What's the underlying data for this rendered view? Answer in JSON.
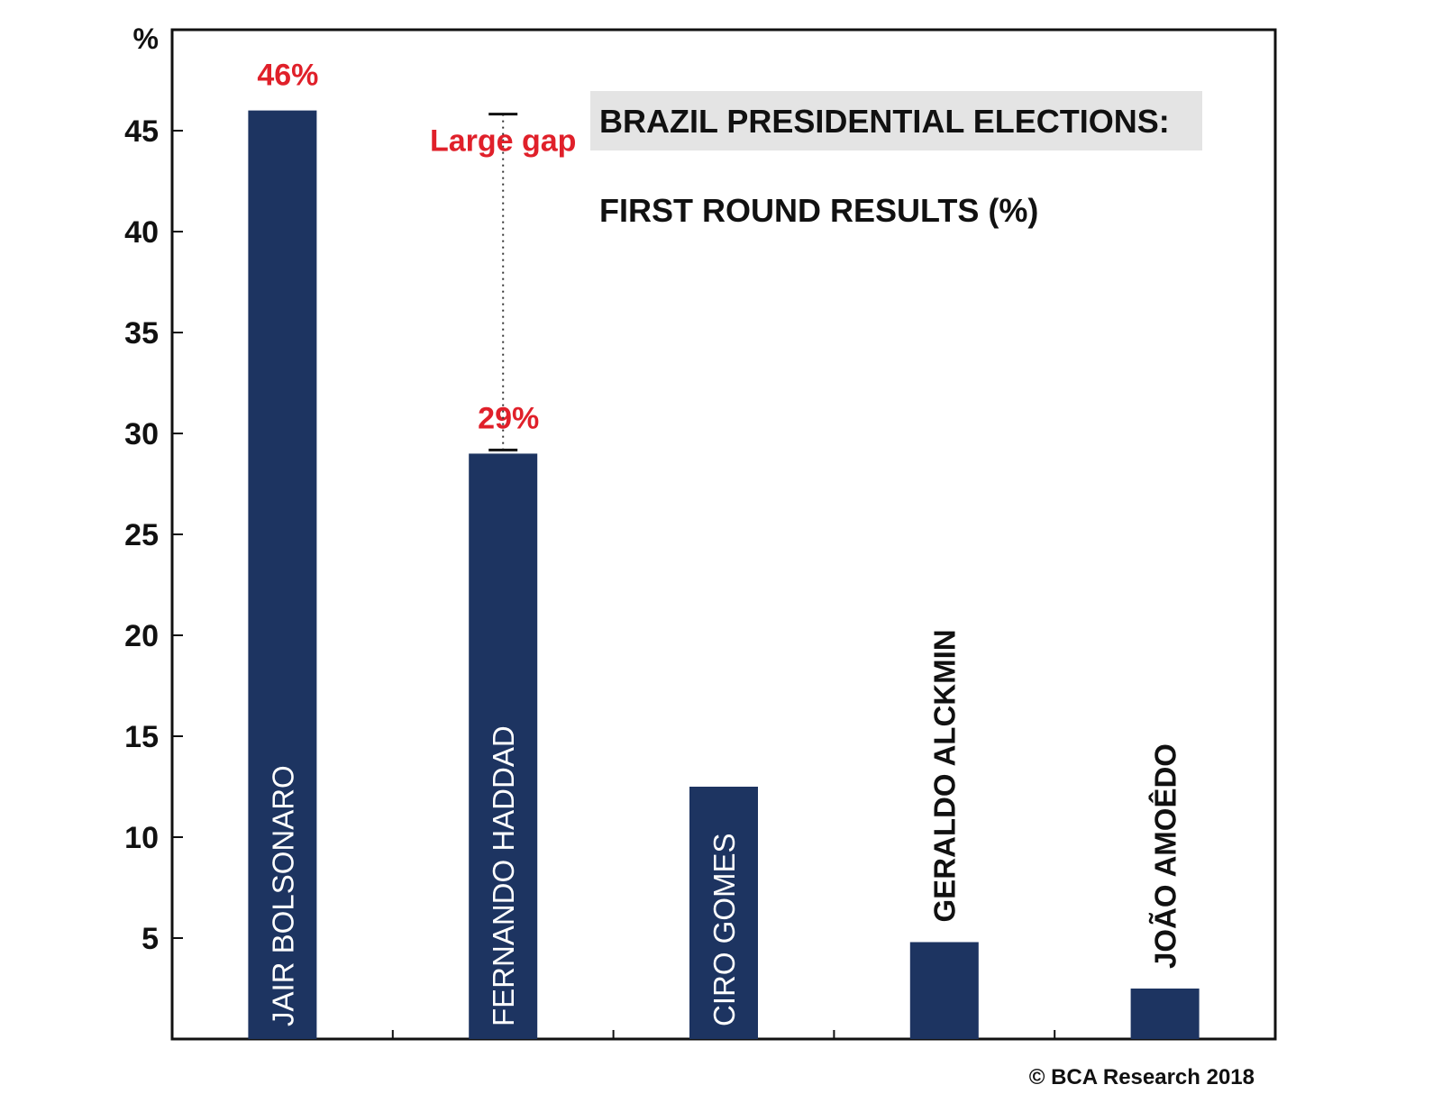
{
  "chart_data": {
    "type": "bar",
    "title": "BRAZIL PRESIDENTIAL ELECTIONS:",
    "subtitle": "FIRST ROUND RESULTS (%)",
    "ylabel": "%",
    "xlabel": "",
    "ylim": [
      0,
      50
    ],
    "yticks": [
      5,
      10,
      15,
      20,
      25,
      30,
      35,
      40,
      45
    ],
    "categories": [
      "JAIR BOLSONARO",
      "FERNANDO HADDAD",
      "CIRO GOMES",
      "GERALDO ALCKMIN",
      "JOÃO AMOÊDO"
    ],
    "values": [
      46,
      29,
      12.5,
      4.8,
      2.5
    ],
    "data_labels": [
      "46%",
      "29%",
      "",
      "",
      ""
    ],
    "annotation": {
      "text": "Large gap",
      "from_value": 29,
      "to_value": 46,
      "category_index": 1
    },
    "grid": false,
    "source": "© BCA Research 2018",
    "colors": {
      "bar": "#1d3461",
      "annotation": "#e0202a",
      "title_box": "#e4e4e4",
      "axis": "#111111"
    }
  }
}
